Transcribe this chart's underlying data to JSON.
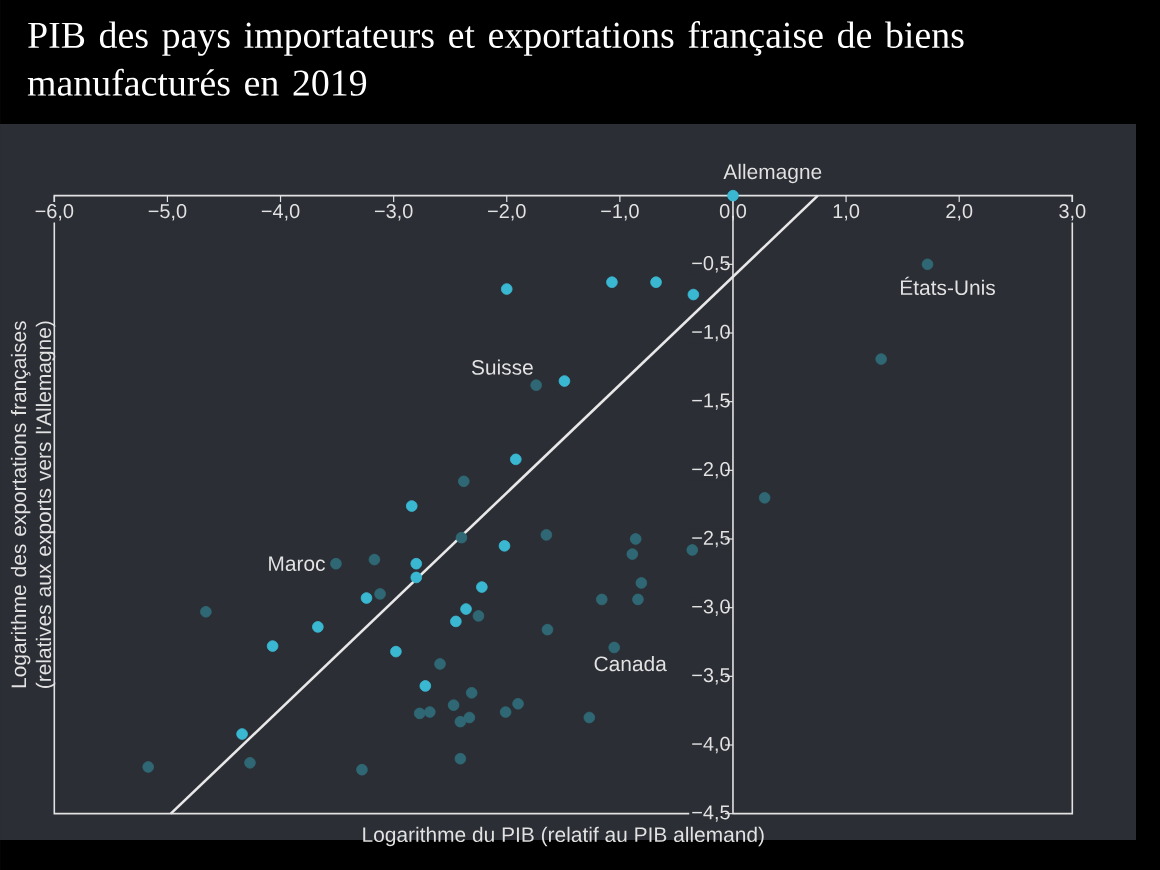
{
  "chart_data": {
    "type": "scatter",
    "title": "PIB des pays importateurs et exportations française de biens manufacturés en 2019",
    "xlabel": "Logarithme du PIB (relatif au PIB allemand)",
    "ylabel": "Logarithme des exportations françaises (relatives aux exports vers l'Allemagne)",
    "xlim": [
      -6,
      3
    ],
    "ylim": [
      -4.5,
      0
    ],
    "xticks": [
      {
        "value": -6,
        "label": "−6,0"
      },
      {
        "value": -5,
        "label": "−5,0"
      },
      {
        "value": -4,
        "label": "−4,0"
      },
      {
        "value": -3,
        "label": "−3,0"
      },
      {
        "value": -2,
        "label": "−2,0"
      },
      {
        "value": -1,
        "label": "−1,0"
      },
      {
        "value": 0,
        "label": "0,0"
      },
      {
        "value": 1,
        "label": "1,0"
      },
      {
        "value": 2,
        "label": "2,0"
      },
      {
        "value": 3,
        "label": "3,0"
      }
    ],
    "yticks": [
      {
        "value": -0.5,
        "label": "−0,5"
      },
      {
        "value": -1,
        "label": "−1,0"
      },
      {
        "value": -1.5,
        "label": "−1,5"
      },
      {
        "value": -2,
        "label": "−2,0"
      },
      {
        "value": -2.5,
        "label": "−2,5"
      },
      {
        "value": -3,
        "label": "−3,0"
      },
      {
        "value": -3.5,
        "label": "−3,5"
      },
      {
        "value": -4,
        "label": "−4,0"
      },
      {
        "value": -4.5,
        "label": "−4,5"
      }
    ],
    "grid": false,
    "series": [
      {
        "color": "#3ab8d2",
        "marker": "circle",
        "x": [
          0,
          -2.0,
          -1.07,
          -0.68,
          -0.35,
          -1.49,
          -1.92,
          -2.84,
          -2.8,
          -2.8,
          -2.02,
          -3.24,
          -3.67,
          -4.07,
          -2.22,
          -2.36,
          -2.45,
          -2.98,
          -2.72,
          -4.34
        ],
        "values": [
          0,
          -0.68,
          -0.63,
          -0.63,
          -0.72,
          -1.35,
          -1.92,
          -2.26,
          -2.68,
          -2.78,
          -2.55,
          -2.93,
          -3.14,
          -3.28,
          -2.85,
          -3.01,
          -3.1,
          -3.32,
          -3.57,
          -3.92
        ]
      },
      {
        "color": "#2f6874",
        "marker": "circle",
        "x": [
          1.72,
          1.31,
          0.28,
          -1.74,
          -2.38,
          -2.4,
          -1.65,
          -0.86,
          -0.89,
          -0.36,
          -0.81,
          -1.16,
          -0.84,
          -1.64,
          -1.05,
          -1.27,
          -4.66,
          -3.51,
          -3.17,
          -3.12,
          -2.25,
          -2.59,
          -2.31,
          -2.47,
          -2.77,
          -2.68,
          -2.41,
          -2.33,
          -2.01,
          -1.9,
          -2.41,
          -3.28,
          -4.27,
          -5.17
        ],
        "values": [
          -0.5,
          -1.19,
          -2.2,
          -1.38,
          -2.08,
          -2.49,
          -2.47,
          -2.5,
          -2.61,
          -2.58,
          -2.82,
          -2.94,
          -2.94,
          -3.16,
          -3.29,
          -3.8,
          -3.03,
          -2.68,
          -2.65,
          -2.9,
          -3.06,
          -3.41,
          -3.62,
          -3.71,
          -3.77,
          -3.76,
          -3.83,
          -3.8,
          -3.76,
          -3.7,
          -4.1,
          -4.18,
          -4.13,
          -4.16
        ]
      },
      {
        "type": "line",
        "color": "#e8e8e8",
        "marker": "none",
        "x": [
          -4.97,
          0.75
        ],
        "values": [
          -4.5,
          0
        ]
      }
    ],
    "annotations": [
      {
        "text": "Allemagne",
        "x": 0,
        "y": 0
      },
      {
        "text": "Suisse",
        "x": -1.74,
        "y": -1.38
      },
      {
        "text": "Maroc",
        "x": -3.51,
        "y": -2.68
      },
      {
        "text": "Canada",
        "x": -1.05,
        "y": -3.29
      },
      {
        "text": "États-Unis",
        "x": 1.72,
        "y": -0.5
      }
    ]
  }
}
